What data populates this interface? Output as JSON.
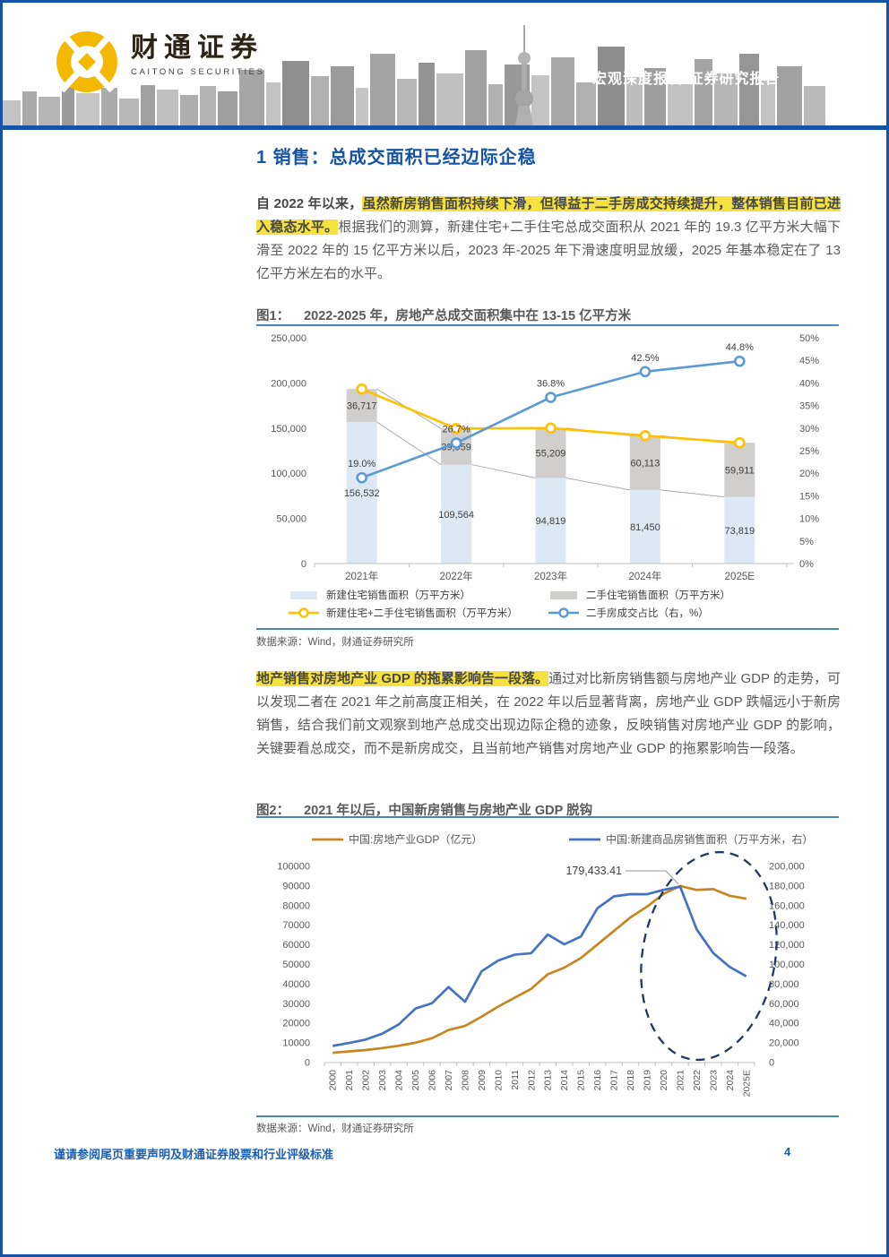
{
  "header": {
    "logo_cn": "财通证券",
    "logo_en": "CAITONG SECURITIES",
    "banner": "宏观深度报告/证券研究报告"
  },
  "section_title": "1 销售：总成交面积已经边际企稳",
  "para1": {
    "lead": "自 2022 年以来，",
    "highlight": "虽然新房销售面积持续下滑，但得益于二手房成交持续提升，整体销售目前已进入稳态水平。",
    "body": "根据我们的测算，新建住宅+二手住宅总成交面积从 2021 年的 19.3 亿平方米大幅下滑至 2022 年的 15 亿平方米以后，2023 年-2025 年下滑速度明显放缓，2025 年基本稳定在了 13 亿平方米左右的水平。"
  },
  "para2": {
    "highlight": "地产销售对房地产业 GDP 的拖累影响告一段落。",
    "body": "通过对比新房销售额与房地产业 GDP 的走势，可以发现二者在 2021 年之前高度正相关，在 2022 年以后显著背离，房地产业 GDP 跌幅远小于新房销售，结合我们前文观察到地产总成交出现边际企稳的迹象，反映销售对房地产业 GDP 的影响，关键要看总成交，而不是新房成交，且当前地产销售对房地产业 GDP 的拖累影响告一段落。"
  },
  "figure1": {
    "title_label": "图1：",
    "title_text": "2022-2025 年，房地产总成交面积集中在 13-15 亿平方米",
    "source": "数据来源：Wind，财通证券研究所"
  },
  "figure2": {
    "title_label": "图2：",
    "title_text": "2021 年以后，中国新房销售与房地产业 GDP 脱钩",
    "source": "数据来源：Wind，财通证券研究所"
  },
  "footer": {
    "disclaimer": "谨请参阅尾页重要声明及财通证券股票和行业评级标准",
    "page_number": "4"
  },
  "chart_data": [
    {
      "id": "fig1",
      "type": "bar",
      "subtype": "stacked-bar-with-lines",
      "title": "2022-2025 年，房地产总成交面积集中在 13-15 亿平方米",
      "categories": [
        "2021年",
        "2022年",
        "2023年",
        "2024年",
        "2025E"
      ],
      "bar_series": [
        {
          "name": "新建住宅销售面积（万平方米）",
          "color": "#DCE9F5",
          "values": [
            156532,
            109564,
            94819,
            81450,
            73819
          ],
          "labels": [
            "156,532",
            "109,564",
            "94,819",
            "81,450",
            "73,819"
          ]
        },
        {
          "name": "二手住宅销售面积（万平方米）",
          "color": "#D1CECE",
          "values": [
            36717,
            39959,
            55209,
            60113,
            59911
          ],
          "labels": [
            "36,717",
            "39,959",
            "55,209",
            "60,113",
            "59,911"
          ]
        }
      ],
      "line_series": [
        {
          "name": "新建住宅+二手住宅销售面积（万平方米）",
          "color": "#FFC000",
          "axis": "left",
          "values": [
            193249,
            149523,
            150028,
            141563,
            133730
          ]
        },
        {
          "name": "二手房成交占比（右，%）",
          "color": "#5B9BD5",
          "axis": "right",
          "values": [
            19.0,
            26.7,
            36.8,
            42.5,
            44.8
          ],
          "labels": [
            "19.0%",
            "26.7%",
            "36.8%",
            "42.5%",
            "44.8%"
          ]
        }
      ],
      "left_axis": {
        "min": 0,
        "max": 250000,
        "ticks": [
          "0",
          "50,000",
          "100,000",
          "150,000",
          "200,000",
          "250,000"
        ]
      },
      "right_axis": {
        "min": 0,
        "max": 50,
        "ticks": [
          "0%",
          "5%",
          "10%",
          "15%",
          "20%",
          "25%",
          "30%",
          "35%",
          "40%",
          "45%",
          "50%"
        ]
      },
      "grid": false,
      "legend_position": "bottom"
    },
    {
      "id": "fig2",
      "type": "line",
      "title": "2021 年以后，中国新房销售与房地产业 GDP 脱钩",
      "x": [
        "2000",
        "2001",
        "2002",
        "2003",
        "2004",
        "2005",
        "2006",
        "2007",
        "2008",
        "2009",
        "2010",
        "2011",
        "2012",
        "2013",
        "2014",
        "2015",
        "2016",
        "2017",
        "2018",
        "2019",
        "2020",
        "2021",
        "2022",
        "2023",
        "2024",
        "2025E"
      ],
      "series": [
        {
          "name": "中国:房地产业GDP（亿元）",
          "color": "#C9861F",
          "axis": "left",
          "values": [
            5000,
            5700,
            6400,
            7400,
            8600,
            10100,
            12400,
            16600,
            18700,
            23400,
            28500,
            33100,
            37600,
            45000,
            48400,
            53300,
            60200,
            67100,
            74000,
            79500,
            86000,
            90000,
            88000,
            88400,
            85000,
            83500
          ]
        },
        {
          "name": "中国:新建商品房销售面积（万平方米，右）",
          "color": "#4472C4",
          "axis": "right",
          "values": [
            17000,
            20000,
            23500,
            29500,
            39000,
            55000,
            60500,
            77000,
            62000,
            93000,
            104000,
            110000,
            111500,
            130500,
            120600,
            128500,
            157300,
            169400,
            171700,
            171600,
            176100,
            179433.41,
            135800,
            111700,
            97400,
            88000
          ]
        }
      ],
      "left_axis": {
        "min": 0,
        "max": 100000,
        "ticks": [
          "0",
          "10000",
          "20000",
          "30000",
          "40000",
          "50000",
          "60000",
          "70000",
          "80000",
          "90000",
          "100000"
        ]
      },
      "right_axis": {
        "min": 0,
        "max": 200000,
        "ticks": [
          "0",
          "20,000",
          "40,000",
          "60,000",
          "80,000",
          "100,000",
          "120,000",
          "140,000",
          "160,000",
          "180,000",
          "200,000"
        ]
      },
      "annotation": {
        "text": "179,433.41",
        "series_index": 1,
        "x_index": 21
      },
      "ellipse_note": "dashed navy ellipse circling the post-2021 divergence of the blue series",
      "grid": false,
      "legend_position": "top"
    }
  ]
}
